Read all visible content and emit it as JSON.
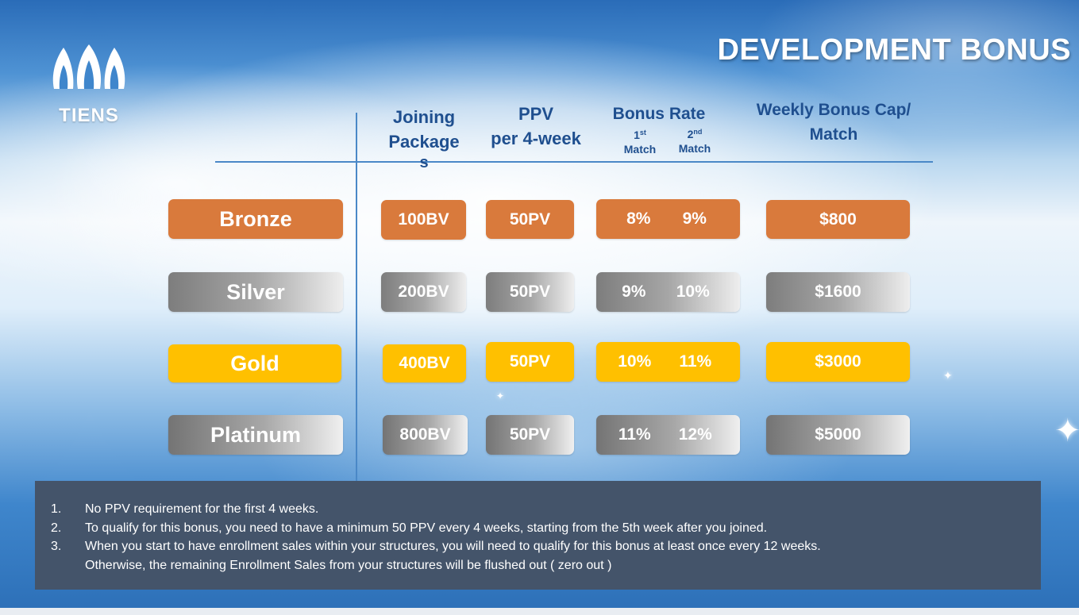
{
  "brand": {
    "name": "TIENS"
  },
  "title": "DEVELOPMENT BONUS",
  "headers": {
    "joining": [
      "Joining",
      "Package",
      "s"
    ],
    "ppv": [
      "PPV",
      "per 4-week"
    ],
    "bonus_rate": "Bonus Rate",
    "bonus_rate_sub": [
      {
        "num": "1",
        "sup": "st",
        "label": "Match"
      },
      {
        "num": "2",
        "sup": "nd",
        "label": "Match"
      }
    ],
    "cap": [
      "Weekly Bonus Cap/",
      "Match"
    ]
  },
  "rows": [
    {
      "tier": "Bronze",
      "package": "100BV",
      "ppv": "50PV",
      "rate1": "8%",
      "rate2": "9%",
      "cap": "$800",
      "color": "#d97a3c"
    },
    {
      "tier": "Silver",
      "package": "200BV",
      "ppv": "50PV",
      "rate1": "9%",
      "rate2": "10%",
      "cap": "$1600",
      "color": "#a6a6a6"
    },
    {
      "tier": "Gold",
      "package": "400BV",
      "ppv": "50PV",
      "rate1": "10%",
      "rate2": "11%",
      "cap": "$3000",
      "color": "#ffc000"
    },
    {
      "tier": "Platinum",
      "package": "800BV",
      "ppv": "50PV",
      "rate1": "11%",
      "rate2": "12%",
      "cap": "$5000",
      "color": "#a8a8a8"
    }
  ],
  "notes": [
    {
      "num": "1.",
      "text": "No PPV requirement for the first 4 weeks."
    },
    {
      "num": "2.",
      "text": "To qualify for this bonus, you need to have a minimum 50 PPV every 4 weeks, starting from the 5th week after you joined."
    },
    {
      "num": "3.",
      "text": "When you start to have enrollment sales within your structures, you will need to qualify for this bonus at least once  every 12 weeks.\nOtherwise, the remaining Enrollment Sales from your structures will be flushed out ( zero out )"
    }
  ],
  "colors": {
    "notes_bg": "#44546a",
    "header_text": "#1f4f8f",
    "grid_line": "#4a88c7"
  }
}
